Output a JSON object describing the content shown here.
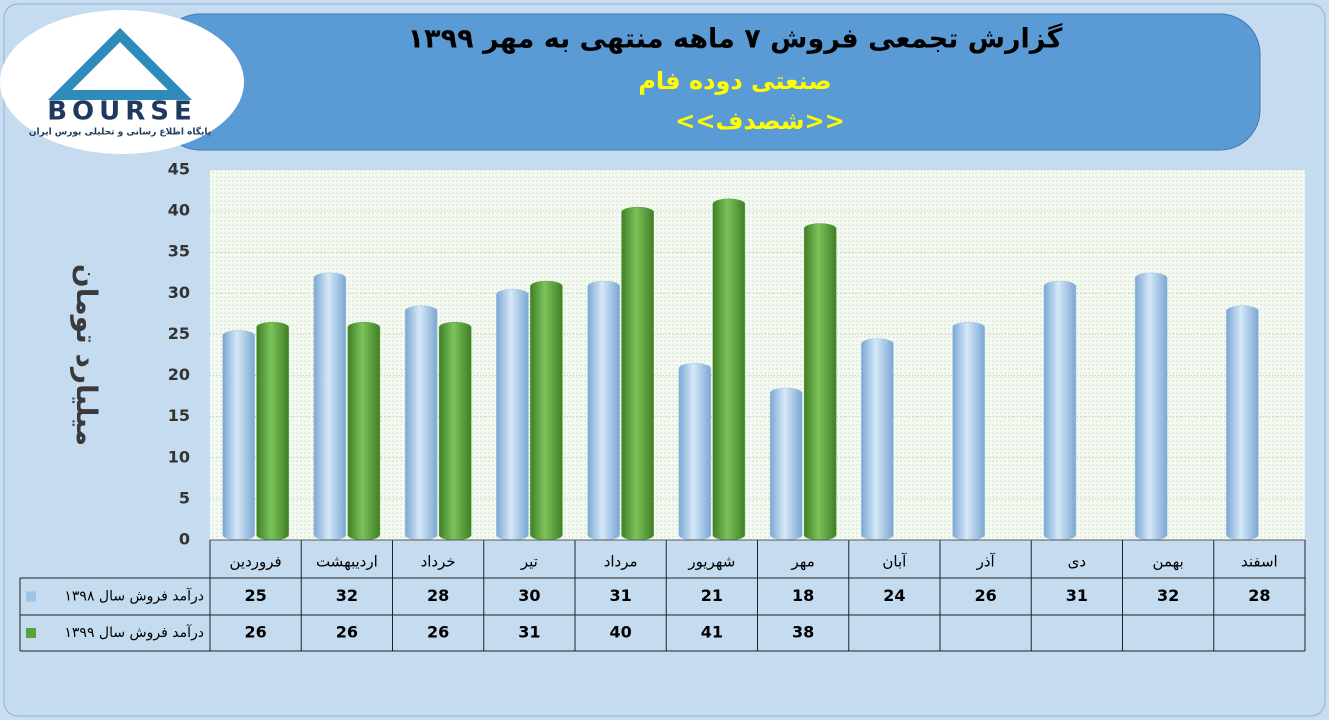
{
  "logo": {
    "name": "BOURSE",
    "tagline": "پایگاه اطلاع رسانی و تحلیلی بورس ایران"
  },
  "chart_data": {
    "type": "bar",
    "title": "گزارش تجمعی فروش ۷ ماهه منتهی به مهر ۱۳۹۹",
    "subtitles": [
      "صنعتی دوده فام",
      "<<شصدف>>"
    ],
    "y_label": "میلیارد تومان",
    "categories": [
      "فروردین",
      "اردیبهشت",
      "خرداد",
      "تیر",
      "مرداد",
      "شهریور",
      "مهر",
      "آبان",
      "آذر",
      "دی",
      "بهمن",
      "اسفند"
    ],
    "series": [
      {
        "name": "درآمد فروش سال ۱۳۹۸",
        "color": "#9dc3e6",
        "values": [
          25,
          32,
          28,
          30,
          31,
          21,
          18,
          24,
          26,
          31,
          32,
          28
        ]
      },
      {
        "name": "درآمد فروش سال ۱۳۹۹",
        "color": "#5aa33a",
        "values": [
          26,
          26,
          26,
          31,
          40,
          41,
          38,
          null,
          null,
          null,
          null,
          null
        ]
      }
    ],
    "ylim": [
      0,
      45
    ],
    "yticks": [
      0,
      5,
      10,
      15,
      20,
      25,
      30,
      35,
      40,
      45
    ],
    "grid": true
  }
}
